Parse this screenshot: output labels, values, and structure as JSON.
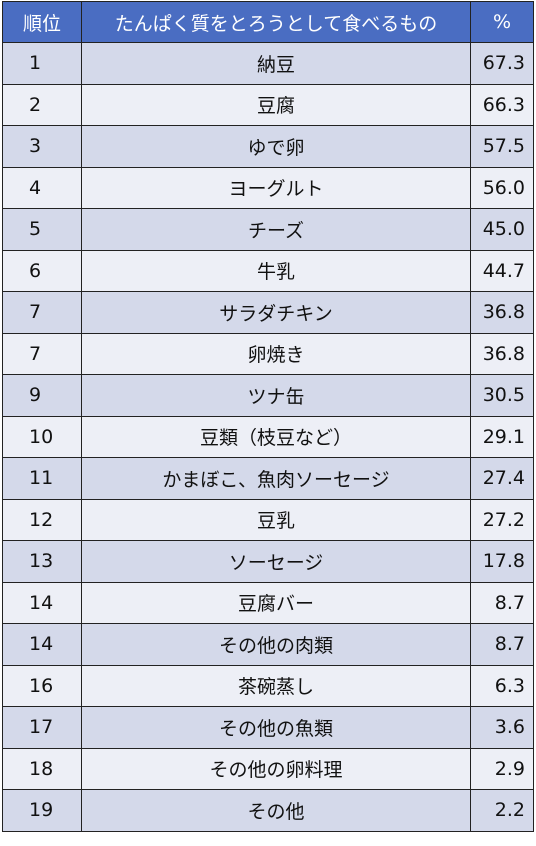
{
  "header": {
    "rank": "順位",
    "item": "たんぱく質をとろうとして食べるもの",
    "percent": "%"
  },
  "colors": {
    "header_bg": "#4a6dc2",
    "row_odd_bg": "#d4d9ea",
    "row_even_bg": "#edeff6"
  },
  "chart_data": {
    "type": "table",
    "columns": [
      "順位",
      "たんぱく質をとろうとして食べるもの",
      "%"
    ],
    "rows": [
      {
        "rank": "1",
        "item": "納豆",
        "percent": "67.3"
      },
      {
        "rank": "2",
        "item": "豆腐",
        "percent": "66.3"
      },
      {
        "rank": "3",
        "item": "ゆで卵",
        "percent": "57.5"
      },
      {
        "rank": "4",
        "item": "ヨーグルト",
        "percent": "56.0"
      },
      {
        "rank": "5",
        "item": "チーズ",
        "percent": "45.0"
      },
      {
        "rank": "6",
        "item": "牛乳",
        "percent": "44.7"
      },
      {
        "rank": "7",
        "item": "サラダチキン",
        "percent": "36.8"
      },
      {
        "rank": "7",
        "item": "卵焼き",
        "percent": "36.8"
      },
      {
        "rank": "9",
        "item": "ツナ缶",
        "percent": "30.5"
      },
      {
        "rank": "10",
        "item": "豆類（枝豆など）",
        "percent": "29.1"
      },
      {
        "rank": "11",
        "item": "かまぼこ、魚肉ソーセージ",
        "percent": "27.4"
      },
      {
        "rank": "12",
        "item": "豆乳",
        "percent": "27.2"
      },
      {
        "rank": "13",
        "item": "ソーセージ",
        "percent": "17.8"
      },
      {
        "rank": "14",
        "item": "豆腐バー",
        "percent": "8.7"
      },
      {
        "rank": "14",
        "item": "その他の肉類",
        "percent": "8.7"
      },
      {
        "rank": "16",
        "item": "茶碗蒸し",
        "percent": "6.3"
      },
      {
        "rank": "17",
        "item": "その他の魚類",
        "percent": "3.6"
      },
      {
        "rank": "18",
        "item": "その他の卵料理",
        "percent": "2.9"
      },
      {
        "rank": "19",
        "item": "その他",
        "percent": "2.2"
      }
    ]
  }
}
